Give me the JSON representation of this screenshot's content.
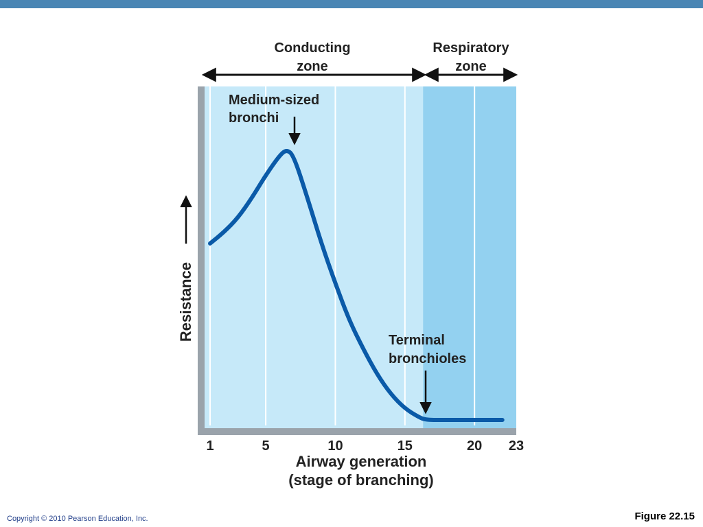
{
  "header": {
    "accent_color": "#4a86b4"
  },
  "footer": {
    "copyright": "Copyright © 2010 Pearson Education, Inc.",
    "figure": "Figure 22.15"
  },
  "chart_data": {
    "type": "line",
    "xlabel": [
      "Airway generation",
      "(stage of branching)"
    ],
    "ylabel": "Resistance",
    "xlim": [
      1,
      23
    ],
    "xticks": [
      1,
      5,
      10,
      15,
      20,
      23
    ],
    "x_tick_labels": [
      "1",
      "5",
      "10",
      "15",
      "20",
      "23"
    ],
    "y_ticks_shown": false,
    "ylim": [
      0,
      1
    ],
    "grid": "vertical bands",
    "zones": [
      {
        "label": [
          "Conducting",
          "zone"
        ],
        "from": 1,
        "to": 16.3,
        "color": "#c6e9f9"
      },
      {
        "label": [
          "Respiratory",
          "zone"
        ],
        "from": 16.3,
        "to": 23,
        "color": "#93d1f0"
      }
    ],
    "series": [
      {
        "color": "#0a5aa8",
        "points": [
          [
            1,
            0.62
          ],
          [
            2,
            0.66
          ],
          [
            3,
            0.71
          ],
          [
            4,
            0.78
          ],
          [
            5,
            0.86
          ],
          [
            6,
            0.93
          ],
          [
            6.5,
            0.95
          ],
          [
            7,
            0.93
          ],
          [
            8,
            0.78
          ],
          [
            9,
            0.62
          ],
          [
            10,
            0.48
          ],
          [
            11,
            0.35
          ],
          [
            12,
            0.25
          ],
          [
            13,
            0.16
          ],
          [
            14,
            0.09
          ],
          [
            15,
            0.04
          ],
          [
            16,
            0.01
          ],
          [
            16.5,
            0.0
          ],
          [
            18,
            0.0
          ],
          [
            20,
            0.0
          ],
          [
            22,
            0.0
          ]
        ]
      }
    ],
    "annotations": [
      {
        "label": [
          "Medium-sized",
          "bronchi"
        ],
        "x": 6.4
      },
      {
        "label": [
          "Terminal",
          "bronchioles"
        ],
        "x": 16.3
      }
    ]
  }
}
